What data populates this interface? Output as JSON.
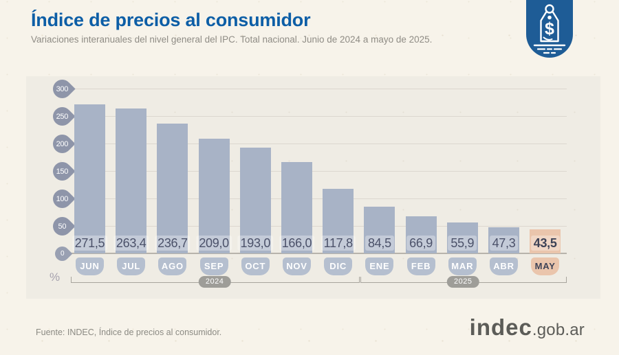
{
  "header": {
    "title": "Índice de precios al consumidor",
    "subtitle": "Variaciones interanuales del nivel general del IPC. Total nacional. Junio de 2024 a mayo de 2025."
  },
  "badge": {
    "icon": "price-tag-icon",
    "symbol": "$",
    "color": "#1e5c96"
  },
  "chart_data": {
    "type": "bar",
    "title": "Índice de precios al consumidor",
    "subtitle": "Variaciones interanuales del nivel general del IPC. Total nacional. Junio de 2024 a mayo de 2025.",
    "unit_label": "%",
    "categories": [
      "JUN",
      "JUL",
      "AGO",
      "SEP",
      "OCT",
      "NOV",
      "DIC",
      "ENE",
      "FEB",
      "MAR",
      "ABR",
      "MAY"
    ],
    "values": [
      271.5,
      263.4,
      236.7,
      209.0,
      193.0,
      166.0,
      117.8,
      84.5,
      66.9,
      55.9,
      47.3,
      43.5
    ],
    "value_labels": [
      "271,5",
      "263,4",
      "236,7",
      "209,0",
      "193,0",
      "166,0",
      "117,8",
      "84,5",
      "66,9",
      "55,9",
      "47,3",
      "43,5"
    ],
    "highlight_index": 11,
    "y_ticks": [
      0,
      50,
      100,
      150,
      200,
      250,
      300
    ],
    "ylim": [
      0,
      300
    ],
    "grid": true,
    "legend": "none",
    "year_groups": [
      {
        "label": "2024",
        "from": 0,
        "to": 6
      },
      {
        "label": "2025",
        "from": 7,
        "to": 11
      }
    ],
    "colors": {
      "bar": "#a8b3c6",
      "bar_highlight": "#eac5ac",
      "month_badge": "#b5bfcf",
      "month_badge_text": "#ffffff",
      "highlight_text": "#3e4357",
      "value_text": "#4b5169",
      "axis_marker": "#8e95a9",
      "axis_marker_zero": "#99a0b2",
      "gridline": "#dcd7cf",
      "baseline": "#b7b3ab",
      "year_pill": "#9e9d98",
      "bracket": "#a6a39c"
    }
  },
  "footer": {
    "source": "Fuente: INDEC, Índice de precios al consumidor.",
    "logo_text": "indec",
    "logo_suffix": ".gob.ar"
  }
}
